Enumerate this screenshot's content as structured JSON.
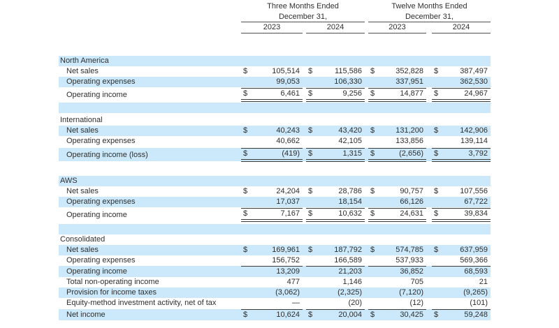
{
  "page": {
    "background": "#ffffff",
    "accent_row_color": "#cbe9fa",
    "text_color": "#2e2e2e"
  },
  "header": {
    "groups": [
      {
        "line1": "Three Months Ended",
        "line2": "December 31,"
      },
      {
        "line1": "Twelve Months Ended",
        "line2": "December 31,"
      }
    ],
    "years": [
      "2023",
      "2024",
      "2023",
      "2024"
    ]
  },
  "table": {
    "rows": [
      {
        "label": "North America",
        "type": "section"
      },
      {
        "label": "Net sales",
        "cells": [
          {
            "d": "$",
            "v": "105,514"
          },
          {
            "d": "$",
            "v": "115,586"
          },
          {
            "d": "$",
            "v": "352,828"
          },
          {
            "d": "$",
            "v": "387,497"
          }
        ]
      },
      {
        "label": "Operating expenses",
        "cells": [
          {
            "v": "99,053"
          },
          {
            "v": "106,330"
          },
          {
            "v": "337,951"
          },
          {
            "v": "362,530"
          }
        ]
      },
      {
        "label": "Operating income",
        "cells": [
          {
            "d": "$",
            "v": "6,461"
          },
          {
            "d": "$",
            "v": "9,256"
          },
          {
            "d": "$",
            "v": "14,877"
          },
          {
            "d": "$",
            "v": "24,967"
          }
        ]
      },
      {
        "type": "spacer"
      },
      {
        "label": "International",
        "type": "section"
      },
      {
        "label": "Net sales",
        "cells": [
          {
            "d": "$",
            "v": "40,243"
          },
          {
            "d": "$",
            "v": "43,420"
          },
          {
            "d": "$",
            "v": "131,200"
          },
          {
            "d": "$",
            "v": "142,906"
          }
        ]
      },
      {
        "label": "Operating expenses",
        "cells": [
          {
            "v": "40,662"
          },
          {
            "v": "42,105"
          },
          {
            "v": "133,856"
          },
          {
            "v": "139,114"
          }
        ]
      },
      {
        "label": "Operating income (loss)",
        "cells": [
          {
            "d": "$",
            "v": "(419)"
          },
          {
            "d": "$",
            "v": "1,315"
          },
          {
            "d": "$",
            "v": "(2,656)"
          },
          {
            "d": "$",
            "v": "3,792"
          }
        ]
      },
      {
        "type": "spacer"
      },
      {
        "label": "AWS",
        "type": "section"
      },
      {
        "label": "Net sales",
        "cells": [
          {
            "d": "$",
            "v": "24,204"
          },
          {
            "d": "$",
            "v": "28,786"
          },
          {
            "d": "$",
            "v": "90,757"
          },
          {
            "d": "$",
            "v": "107,556"
          }
        ]
      },
      {
        "label": "Operating expenses",
        "cells": [
          {
            "v": "17,037"
          },
          {
            "v": "18,154"
          },
          {
            "v": "66,126"
          },
          {
            "v": "67,722"
          }
        ]
      },
      {
        "label": "Operating income",
        "cells": [
          {
            "d": "$",
            "v": "7,167"
          },
          {
            "d": "$",
            "v": "10,632"
          },
          {
            "d": "$",
            "v": "24,631"
          },
          {
            "d": "$",
            "v": "39,834"
          }
        ]
      },
      {
        "type": "spacer"
      },
      {
        "label": "Consolidated",
        "type": "section"
      },
      {
        "label": "Net sales",
        "cells": [
          {
            "d": "$",
            "v": "169,961"
          },
          {
            "d": "$",
            "v": "187,792"
          },
          {
            "d": "$",
            "v": "574,785"
          },
          {
            "d": "$",
            "v": "637,959"
          }
        ]
      },
      {
        "label": "Operating expenses",
        "cells": [
          {
            "v": "156,752"
          },
          {
            "v": "166,589"
          },
          {
            "v": "537,933"
          },
          {
            "v": "569,366"
          }
        ]
      },
      {
        "label": "Operating income",
        "cells": [
          {
            "v": "13,209"
          },
          {
            "v": "21,203"
          },
          {
            "v": "36,852"
          },
          {
            "v": "68,593"
          }
        ]
      },
      {
        "label": "Total non-operating income",
        "cells": [
          {
            "v": "477"
          },
          {
            "v": "1,146"
          },
          {
            "v": "705"
          },
          {
            "v": "21"
          }
        ]
      },
      {
        "label": "Provision for income taxes",
        "cells": [
          {
            "v": "(3,062)"
          },
          {
            "v": "(2,325)"
          },
          {
            "v": "(7,120)"
          },
          {
            "v": "(9,265)"
          }
        ]
      },
      {
        "label": "Equity-method investment activity, net of tax",
        "cells": [
          {
            "v": "—"
          },
          {
            "v": "(20)"
          },
          {
            "v": "(12)"
          },
          {
            "v": "(101)"
          }
        ]
      },
      {
        "label": "Net income",
        "cells": [
          {
            "d": "$",
            "v": "10,624"
          },
          {
            "d": "$",
            "v": "20,004"
          },
          {
            "d": "$",
            "v": "30,425"
          },
          {
            "d": "$",
            "v": "59,248"
          }
        ]
      }
    ]
  }
}
